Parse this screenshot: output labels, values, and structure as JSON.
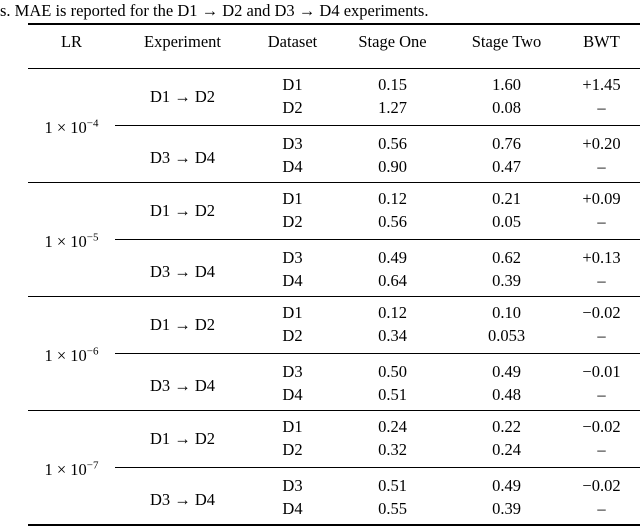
{
  "caption": "s. MAE is reported for the D1 → D2 and D3 → D4 experiments.",
  "table": {
    "headers": {
      "lr": "LR",
      "experiment": "Experiment",
      "dataset": "Dataset",
      "stage_one": "Stage One",
      "stage_two": "Stage Two",
      "bwt": "BWT"
    },
    "groups": [
      {
        "lr_base": "1 × 10",
        "lr_exp": "−4",
        "experiments": [
          {
            "label": "D1 → D2",
            "rows": [
              {
                "dataset": "D1",
                "stage_one": "0.15",
                "stage_two": "1.60",
                "bwt": "+1.45"
              },
              {
                "dataset": "D2",
                "stage_one": "1.27",
                "stage_two": "0.08",
                "bwt": "–"
              }
            ]
          },
          {
            "label": "D3 → D4",
            "rows": [
              {
                "dataset": "D3",
                "stage_one": "0.56",
                "stage_two": "0.76",
                "bwt": "+0.20"
              },
              {
                "dataset": "D4",
                "stage_one": "0.90",
                "stage_two": "0.47",
                "bwt": "–"
              }
            ]
          }
        ]
      },
      {
        "lr_base": "1 × 10",
        "lr_exp": "−5",
        "experiments": [
          {
            "label": "D1 → D2",
            "rows": [
              {
                "dataset": "D1",
                "stage_one": "0.12",
                "stage_two": "0.21",
                "bwt": "+0.09"
              },
              {
                "dataset": "D2",
                "stage_one": "0.56",
                "stage_two": "0.05",
                "bwt": "–"
              }
            ]
          },
          {
            "label": "D3 → D4",
            "rows": [
              {
                "dataset": "D3",
                "stage_one": "0.49",
                "stage_two": "0.62",
                "bwt": "+0.13"
              },
              {
                "dataset": "D4",
                "stage_one": "0.64",
                "stage_two": "0.39",
                "bwt": "–"
              }
            ]
          }
        ]
      },
      {
        "lr_base": "1 × 10",
        "lr_exp": "−6",
        "experiments": [
          {
            "label": "D1 → D2",
            "rows": [
              {
                "dataset": "D1",
                "stage_one": "0.12",
                "stage_two": "0.10",
                "bwt": "−0.02"
              },
              {
                "dataset": "D2",
                "stage_one": "0.34",
                "stage_two": "0.053",
                "bwt": "–"
              }
            ]
          },
          {
            "label": "D3 → D4",
            "rows": [
              {
                "dataset": "D3",
                "stage_one": "0.50",
                "stage_two": "0.49",
                "bwt": "−0.01"
              },
              {
                "dataset": "D4",
                "stage_one": "0.51",
                "stage_two": "0.48",
                "bwt": "–"
              }
            ]
          }
        ]
      },
      {
        "lr_base": "1 × 10",
        "lr_exp": "−7",
        "experiments": [
          {
            "label": "D1 → D2",
            "rows": [
              {
                "dataset": "D1",
                "stage_one": "0.24",
                "stage_two": "0.22",
                "bwt": "−0.02"
              },
              {
                "dataset": "D2",
                "stage_one": "0.32",
                "stage_two": "0.24",
                "bwt": "–"
              }
            ]
          },
          {
            "label": "D3 → D4",
            "rows": [
              {
                "dataset": "D3",
                "stage_one": "0.51",
                "stage_two": "0.49",
                "bwt": "−0.02"
              },
              {
                "dataset": "D4",
                "stage_one": "0.55",
                "stage_two": "0.39",
                "bwt": "–"
              }
            ]
          }
        ]
      }
    ]
  }
}
